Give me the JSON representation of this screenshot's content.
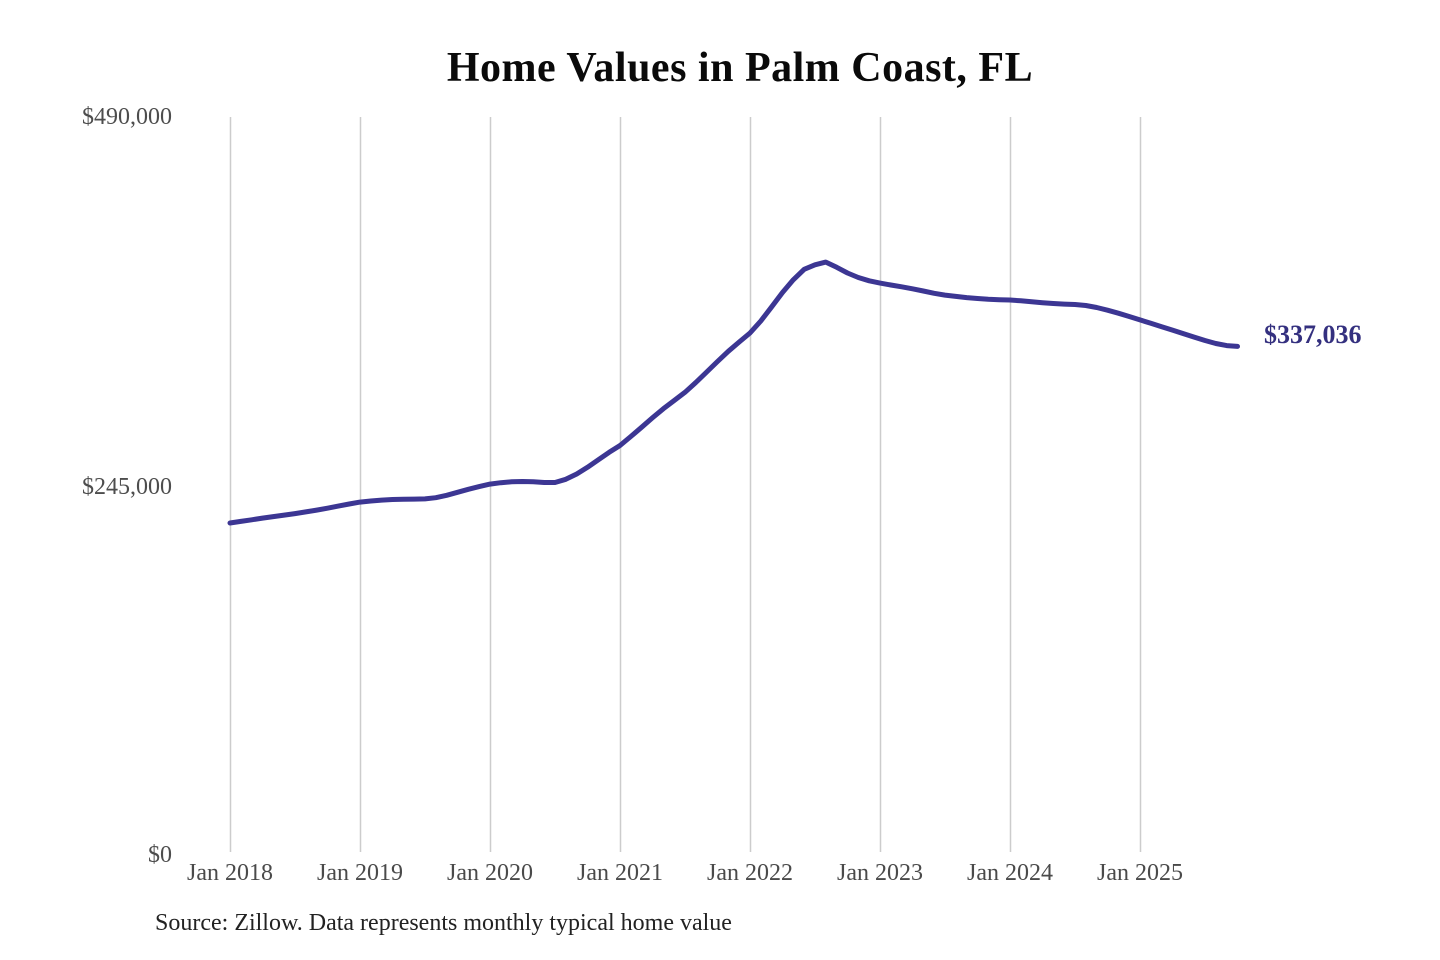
{
  "page": {
    "background_color": "#ffffff"
  },
  "chart": {
    "title": "Home Values in Palm Coast, FL",
    "source_note": "Source: Zillow. Data represents monthly typical home value",
    "end_label": "$337,036",
    "line_color": "#3c3693",
    "end_label_color": "#34307f",
    "gridline_color": "#cccccc"
  },
  "chart_data": {
    "type": "line",
    "title": "Home Values in Palm Coast, FL",
    "ylabel": "",
    "xlabel": "",
    "ylim": [
      0,
      490000
    ],
    "grid": "vertical-only",
    "legend": "none",
    "y_tick_labels": [
      "$490,000",
      "$245,000",
      "$0"
    ],
    "y_tick_values": [
      490000,
      245000,
      0
    ],
    "x_tick_labels": [
      "Jan 2018",
      "Jan 2019",
      "Jan 2020",
      "Jan 2021",
      "Jan 2022",
      "Jan 2023",
      "Jan 2024",
      "Jan 2025"
    ],
    "series_name": "Typical home value (monthly)",
    "x": [
      "2018-01",
      "2018-02",
      "2018-03",
      "2018-04",
      "2018-05",
      "2018-06",
      "2018-07",
      "2018-08",
      "2018-09",
      "2018-10",
      "2018-11",
      "2018-12",
      "2019-01",
      "2019-02",
      "2019-03",
      "2019-04",
      "2019-05",
      "2019-06",
      "2019-07",
      "2019-08",
      "2019-09",
      "2019-10",
      "2019-11",
      "2019-12",
      "2020-01",
      "2020-02",
      "2020-03",
      "2020-04",
      "2020-05",
      "2020-06",
      "2020-07",
      "2020-08",
      "2020-09",
      "2020-10",
      "2020-11",
      "2020-12",
      "2021-01",
      "2021-02",
      "2021-03",
      "2021-04",
      "2021-05",
      "2021-06",
      "2021-07",
      "2021-08",
      "2021-09",
      "2021-10",
      "2021-11",
      "2021-12",
      "2022-01",
      "2022-02",
      "2022-03",
      "2022-04",
      "2022-05",
      "2022-06",
      "2022-07",
      "2022-08",
      "2022-09",
      "2022-10",
      "2022-11",
      "2022-12",
      "2023-01",
      "2023-02",
      "2023-03",
      "2023-04",
      "2023-05",
      "2023-06",
      "2023-07",
      "2023-08",
      "2023-09",
      "2023-10",
      "2023-11",
      "2023-12",
      "2024-01",
      "2024-02",
      "2024-03",
      "2024-04",
      "2024-05",
      "2024-06",
      "2024-07",
      "2024-08",
      "2024-09",
      "2024-10",
      "2024-11",
      "2024-12",
      "2025-01",
      "2025-02",
      "2025-03",
      "2025-04",
      "2025-05",
      "2025-06",
      "2025-07",
      "2025-08",
      "2025-09",
      "2025-10"
    ],
    "values": [
      219300,
      220400,
      221500,
      222600,
      223600,
      224600,
      225600,
      226700,
      227900,
      229200,
      230600,
      232000,
      233300,
      234000,
      234600,
      235000,
      235200,
      235300,
      235400,
      236200,
      237800,
      239800,
      241800,
      243600,
      245300,
      246200,
      246800,
      247000,
      246800,
      246300,
      246300,
      248500,
      252000,
      256500,
      261500,
      266500,
      271000,
      277000,
      283200,
      289500,
      295500,
      301000,
      306500,
      313000,
      320000,
      327000,
      333800,
      340000,
      346000,
      354000,
      363500,
      373000,
      381500,
      388500,
      391500,
      393300,
      389800,
      386000,
      383000,
      380800,
      379300,
      378000,
      376800,
      375500,
      374000,
      372500,
      371300,
      370400,
      369600,
      369000,
      368500,
      368200,
      368000,
      367500,
      366800,
      366200,
      365700,
      365300,
      365000,
      364300,
      363000,
      361200,
      359200,
      357000,
      354700,
      352500,
      350200,
      347900,
      345600,
      343300,
      341000,
      339000,
      337600,
      337036
    ],
    "end_annotation": {
      "label": "$337,036",
      "value": 337036
    }
  }
}
